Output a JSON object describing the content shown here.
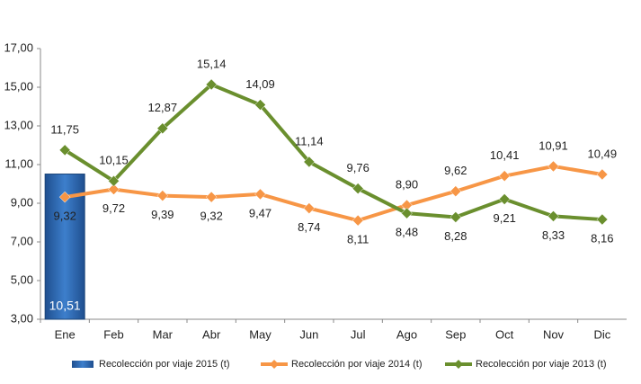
{
  "chart_data": {
    "type": "line",
    "categories": [
      "Ene",
      "Feb",
      "Mar",
      "Abr",
      "May",
      "Jun",
      "Jul",
      "Ago",
      "Sep",
      "Oct",
      "Nov",
      "Dic"
    ],
    "series": [
      {
        "name": "Recolección por viaje 2015 (t)",
        "type": "bar",
        "color": "#2e6db4",
        "values": [
          10.51,
          null,
          null,
          null,
          null,
          null,
          null,
          null,
          null,
          null,
          null,
          null
        ],
        "value_labels": [
          "10,51",
          null,
          null,
          null,
          null,
          null,
          null,
          null,
          null,
          null,
          null,
          null
        ]
      },
      {
        "name": "Recolección por viaje 2014 (t)",
        "type": "line",
        "color": "#f79646",
        "values": [
          9.32,
          9.72,
          9.39,
          9.32,
          9.47,
          8.74,
          8.11,
          8.9,
          9.62,
          10.41,
          10.91,
          10.49
        ],
        "value_labels": [
          "9,32",
          "9,72",
          "9,39",
          "9,32",
          "9,47",
          "8,74",
          "8,11",
          "8,90",
          "9,62",
          "10,41",
          "10,91",
          "10,49"
        ]
      },
      {
        "name": "Recolección por viaje 2013 (t)",
        "type": "line",
        "color": "#6a8f2e",
        "values": [
          11.75,
          10.15,
          12.87,
          15.14,
          14.09,
          11.14,
          9.76,
          8.48,
          8.28,
          9.21,
          8.33,
          8.16
        ],
        "value_labels": [
          "11,75",
          "10,15",
          "12,87",
          "15,14",
          "14,09",
          "11,14",
          "9,76",
          "8,48",
          "8,28",
          "9,21",
          "8,33",
          "8,16"
        ]
      }
    ],
    "ylim": [
      3,
      17
    ],
    "yticks": [
      {
        "value": 3,
        "label": "3,00"
      },
      {
        "value": 5,
        "label": "5,00"
      },
      {
        "value": 7,
        "label": "7,00"
      },
      {
        "value": 9,
        "label": "9,00"
      },
      {
        "value": 11,
        "label": "11,00"
      },
      {
        "value": 13,
        "label": "13,00"
      },
      {
        "value": 15,
        "label": "15,00"
      },
      {
        "value": 17,
        "label": "17,00"
      }
    ],
    "grid": false,
    "legend": "bottom"
  }
}
